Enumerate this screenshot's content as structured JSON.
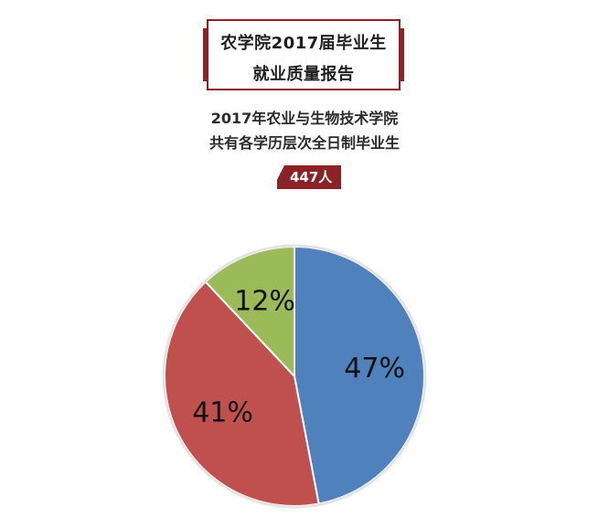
{
  "header": {
    "title_line1": "农学院2017届毕业生",
    "title_line2": "就业质量报告",
    "subtitle_line1": "2017年农业与生物技术学院",
    "subtitle_line2": "共有各学历层次全日制毕业生",
    "count_badge": "447人"
  },
  "colors": {
    "accent": "#8b2326",
    "slice_blue": "#4f81bd",
    "slice_red": "#c0504d",
    "slice_green": "#9bbb59"
  },
  "chart_data": {
    "type": "pie",
    "title": "",
    "categories": [
      "",
      "",
      ""
    ],
    "values": [
      47,
      41,
      12
    ],
    "labels": [
      "47%",
      "41%",
      "12%"
    ],
    "colors": [
      "#4f81bd",
      "#c0504d",
      "#9bbb59"
    ],
    "legend": "none"
  }
}
